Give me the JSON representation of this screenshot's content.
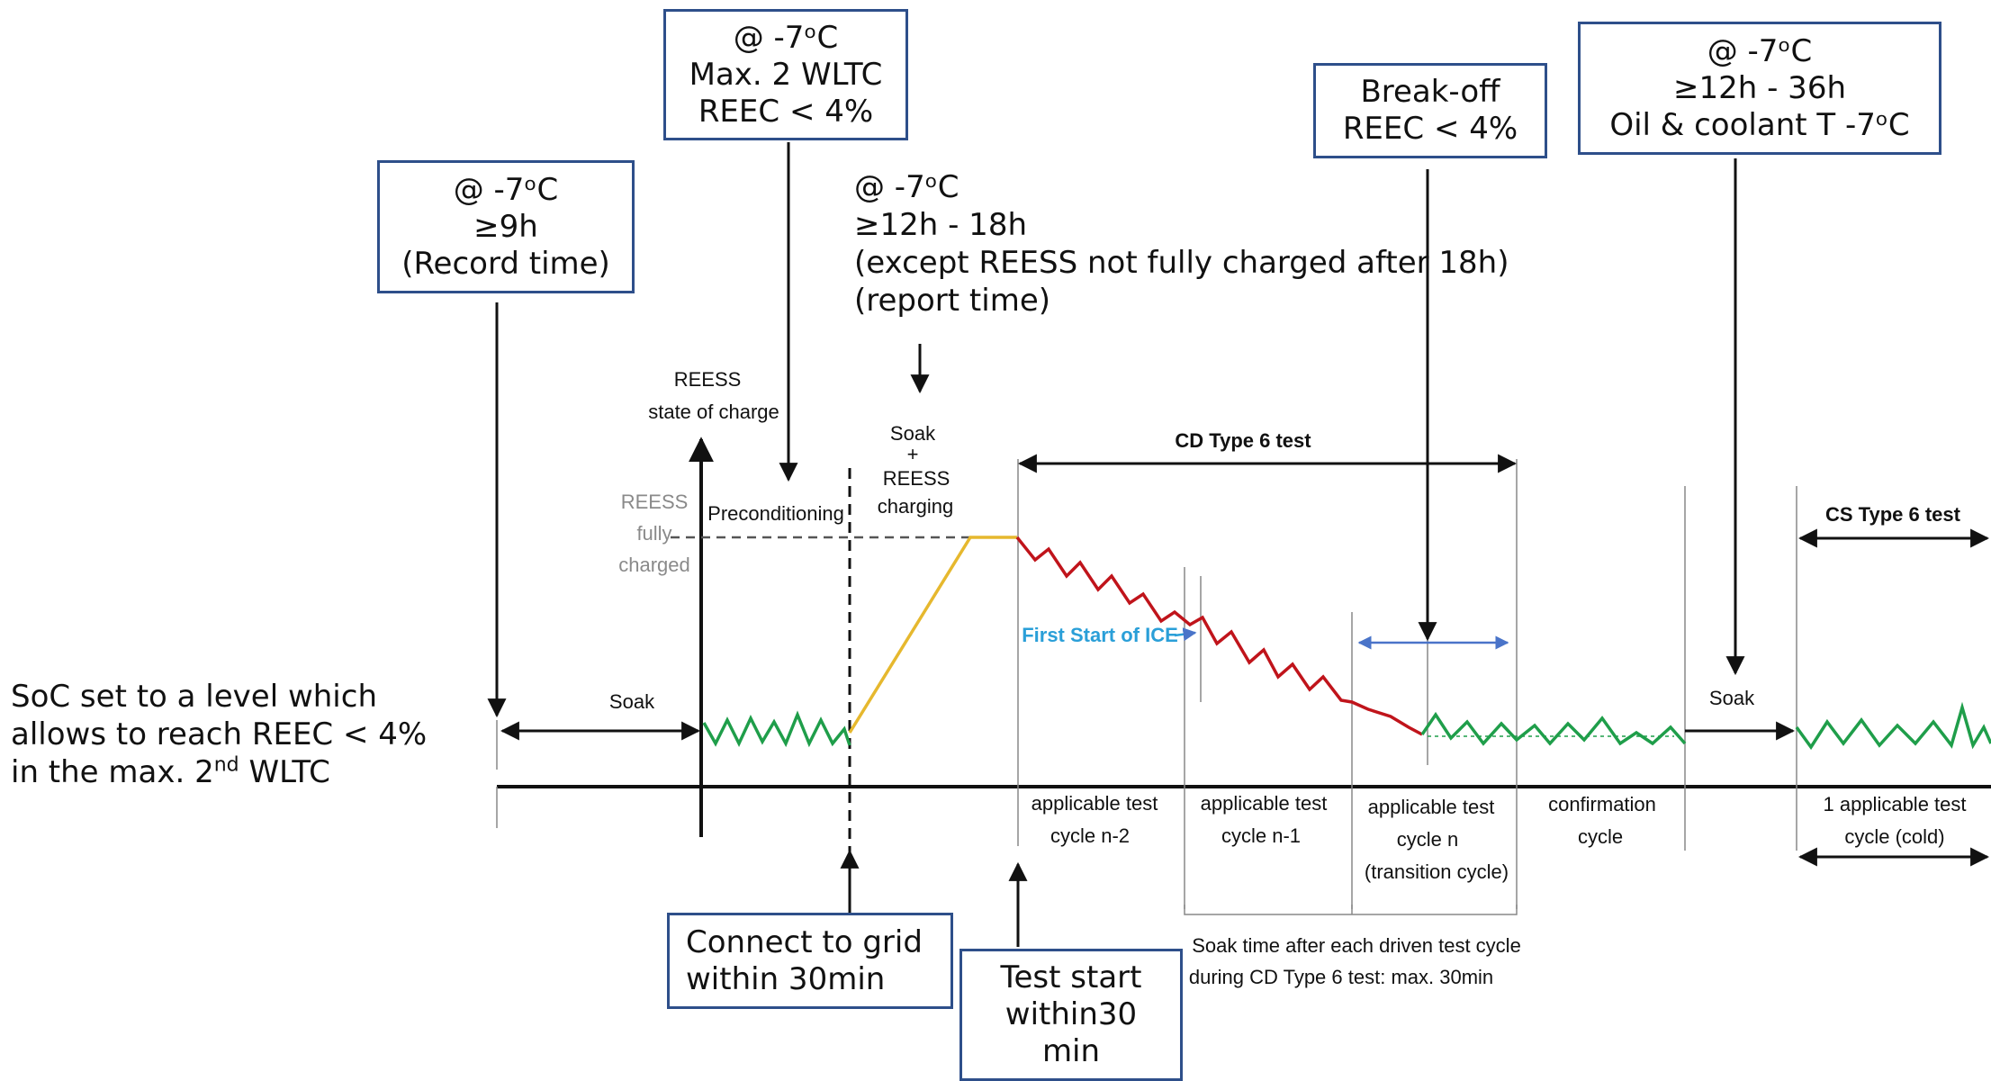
{
  "boxes": {
    "box1": [
      "@ -7ᵒC",
      "≥9h",
      "(Record time)"
    ],
    "box2": [
      "@ -7ᵒC",
      "Max. 2 WLTC",
      "REEC < 4%"
    ],
    "box3": [
      "Break-off",
      "REEC < 4%"
    ],
    "box4": [
      "@ -7ᵒC",
      "≥12h - 36h",
      "Oil & coolant T -7ᵒC"
    ],
    "grid": [
      "Connect to grid",
      "within 30min"
    ],
    "start": [
      "Test start",
      "within30",
      "min"
    ]
  },
  "soak_note": [
    "@ -7ᵒC",
    "≥12h - 18h",
    "(except REESS not fully charged after 18h)",
    "(report time)"
  ],
  "soc_note": {
    "line1": "SoC set to a level which",
    "line2": "allows to reach REEC < 4%",
    "line3_pre": "in the max. 2",
    "line3_sup": "nd",
    "line3_post": " WLTC"
  },
  "diagram": {
    "y_axis": [
      "REESS",
      "state of charge"
    ],
    "fully_charged": [
      "REESS",
      "fully",
      "charged"
    ],
    "preconditioning": "Preconditioning",
    "soak_charging": [
      "Soak",
      "+",
      "REESS",
      "charging"
    ],
    "soak_left": "Soak",
    "soak_right": "Soak",
    "cd_title": "CD Type 6 test",
    "cs_title": "CS Type 6 test",
    "first_start": "First Start of ICE",
    "cycles": [
      [
        "applicable test",
        "cycle n-2"
      ],
      [
        "applicable test",
        "cycle n-1"
      ],
      [
        "applicable test",
        "cycle n",
        "(transition cycle)"
      ],
      [
        "confirmation",
        "cycle"
      ],
      [
        "1 applicable test",
        "cycle (cold)"
      ]
    ],
    "soak_time_note": [
      "Soak time after each driven test cycle",
      "during CD Type 6 test: max. 30min"
    ]
  },
  "colors": {
    "box_border": "#2e4f8a",
    "cd_line": "#c0141b",
    "cs_line": "#1f9e4a",
    "charge_line": "#e6b82e",
    "ice_label": "#2a9fd8",
    "arrow_blue": "#4a74c9"
  }
}
